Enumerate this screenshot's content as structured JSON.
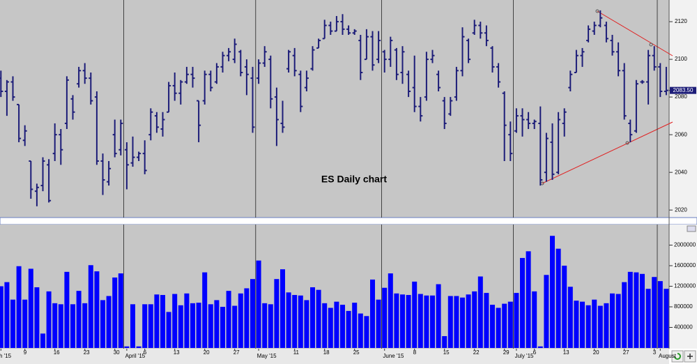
{
  "chart_data": [
    {
      "type": "ohlc",
      "title": "ES Daily chart",
      "color": "#1c1c78",
      "last_price_label": "2083.50",
      "ylim": [
        2016,
        2131.5
      ],
      "yticks": [
        2020,
        2040,
        2060,
        2080,
        2100,
        2120
      ],
      "open": [
        2090,
        2083,
        2088,
        2076,
        2057,
        2046,
        2030,
        2033,
        2044,
        2050,
        2060,
        2066,
        2079,
        2087,
        2094,
        2090,
        2080,
        2046,
        2035,
        2060,
        2052,
        2052,
        2045,
        2048,
        2050,
        2060,
        2070,
        2063,
        2072,
        2086,
        2082,
        2088,
        2092,
        2078,
        2078,
        2092,
        2088,
        2096,
        2102,
        2100,
        2104,
        2096,
        2090,
        2090,
        2098,
        2100,
        2080,
        2066,
        2095,
        2102,
        2092,
        2085,
        2095,
        2106,
        2111,
        2118,
        2115,
        2120,
        2116,
        2114,
        2110,
        2100,
        2112,
        2100,
        2104,
        2100,
        2105,
        2093,
        2092,
        2085,
        2075,
        2080,
        2100,
        2092,
        2078,
        2071,
        2080,
        2094,
        2110,
        2114,
        2118,
        2114,
        2106,
        2096,
        2082,
        2060,
        2062,
        2070,
        2068,
        2066,
        2066,
        2040,
        2056,
        2040,
        2066,
        2085,
        2093,
        2102,
        2110,
        2115,
        2118,
        2118,
        2110,
        2104,
        2094,
        2066,
        2062,
        2088,
        2088,
        2102,
        2096,
        2083
      ],
      "high": [
        2094,
        2089,
        2091,
        2076,
        2065,
        2046,
        2034,
        2048,
        2047,
        2066,
        2063,
        2091,
        2081,
        2096,
        2098,
        2093,
        2083,
        2050,
        2046,
        2068,
        2068,
        2056,
        2059,
        2051,
        2057,
        2074,
        2072,
        2072,
        2088,
        2093,
        2089,
        2096,
        2096,
        2078,
        2094,
        2094,
        2098,
        2104,
        2106,
        2111,
        2105,
        2100,
        2096,
        2100,
        2107,
        2102,
        2085,
        2078,
        2105,
        2106,
        2094,
        2094,
        2107,
        2111,
        2121,
        2120,
        2123,
        2124,
        2118,
        2116,
        2113,
        2116,
        2115,
        2115,
        2105,
        2112,
        2106,
        2107,
        2094,
        2102,
        2080,
        2104,
        2105,
        2094,
        2080,
        2080,
        2096,
        2117,
        2111,
        2121,
        2120,
        2118,
        2107,
        2098,
        2083,
        2067,
        2074,
        2074,
        2072,
        2068,
        2075,
        2061,
        2066,
        2072,
        2074,
        2094,
        2105,
        2106,
        2118,
        2120,
        2126,
        2120,
        2113,
        2109,
        2098,
        2068,
        2089,
        2089,
        2105,
        2107,
        2098,
        2096
      ],
      "low": [
        2080,
        2070,
        2078,
        2056,
        2054,
        2026,
        2022,
        2030,
        2024,
        2046,
        2044,
        2063,
        2068,
        2085,
        2087,
        2076,
        2044,
        2028,
        2033,
        2048,
        2049,
        2031,
        2043,
        2046,
        2039,
        2057,
        2061,
        2059,
        2072,
        2078,
        2076,
        2087,
        2085,
        2056,
        2076,
        2083,
        2087,
        2093,
        2099,
        2098,
        2091,
        2081,
        2061,
        2087,
        2096,
        2074,
        2054,
        2061,
        2093,
        2091,
        2072,
        2083,
        2094,
        2106,
        2111,
        2113,
        2115,
        2113,
        2113,
        2113,
        2089,
        2100,
        2094,
        2098,
        2093,
        2096,
        2089,
        2087,
        2080,
        2072,
        2067,
        2078,
        2098,
        2083,
        2063,
        2070,
        2078,
        2091,
        2098,
        2113,
        2111,
        2107,
        2093,
        2085,
        2046,
        2046,
        2061,
        2059,
        2063,
        2063,
        2033,
        2035,
        2036,
        2039,
        2059,
        2083,
        2093,
        2096,
        2109,
        2113,
        2117,
        2109,
        2102,
        2091,
        2068,
        2056,
        2061,
        2087,
        2076,
        2094,
        2080,
        2081
      ],
      "close": [
        2083,
        2088,
        2080,
        2058,
        2062,
        2031,
        2032,
        2046,
        2025,
        2060,
        2052,
        2089,
        2072,
        2094,
        2090,
        2078,
        2046,
        2036,
        2042,
        2050,
        2066,
        2044,
        2048,
        2050,
        2041,
        2072,
        2064,
        2068,
        2086,
        2082,
        2088,
        2092,
        2090,
        2065,
        2092,
        2085,
        2096,
        2102,
        2104,
        2108,
        2093,
        2092,
        2064,
        2098,
        2104,
        2079,
        2068,
        2064,
        2104,
        2094,
        2075,
        2090,
        2105,
        2110,
        2118,
        2115,
        2120,
        2116,
        2114,
        2115,
        2093,
        2112,
        2097,
        2110,
        2100,
        2110,
        2092,
        2104,
        2083,
        2075,
        2070,
        2100,
        2102,
        2085,
        2066,
        2078,
        2094,
        2112,
        2100,
        2118,
        2114,
        2110,
        2096,
        2088,
        2065,
        2050,
        2070,
        2068,
        2066,
        2067,
        2036,
        2058,
        2039,
        2068,
        2072,
        2092,
        2102,
        2104,
        2116,
        2118,
        2122,
        2111,
        2104,
        2094,
        2070,
        2060,
        2087,
        2088,
        2102,
        2096,
        2083,
        2083.5
      ]
    },
    {
      "type": "bar",
      "color": "#0000ff",
      "ylim": [
        0,
        2400000
      ],
      "yticks": [
        400000,
        800000,
        1200000,
        1600000,
        2000000
      ],
      "categories": [
        "h '15",
        null,
        null,
        null,
        "9",
        null,
        null,
        null,
        null,
        "16",
        null,
        null,
        null,
        null,
        "23",
        null,
        null,
        null,
        null,
        "30",
        null,
        "April '15",
        null,
        null,
        "6",
        null,
        null,
        null,
        null,
        "13",
        null,
        null,
        null,
        null,
        "20",
        null,
        null,
        null,
        null,
        "27",
        null,
        null,
        null,
        "May '15",
        null,
        null,
        null,
        null,
        null,
        "11",
        null,
        null,
        null,
        null,
        "18",
        null,
        null,
        null,
        null,
        "25",
        null,
        null,
        null,
        null,
        "June '15",
        null,
        null,
        null,
        null,
        "8",
        null,
        null,
        null,
        null,
        "15",
        null,
        null,
        null,
        null,
        "22",
        null,
        null,
        null,
        null,
        "29",
        null,
        "July '15",
        null,
        null,
        "6",
        null,
        null,
        null,
        null,
        "13",
        null,
        null,
        null,
        null,
        "20",
        null,
        null,
        null,
        null,
        "27",
        null,
        null,
        null,
        null,
        "3",
        "August",
        null
      ],
      "values": [
        1200000,
        1280000,
        940000,
        1590000,
        940000,
        1540000,
        1180000,
        280000,
        1100000,
        870000,
        850000,
        1480000,
        850000,
        1110000,
        870000,
        1610000,
        1490000,
        930000,
        1010000,
        1370000,
        1450000,
        30000,
        850000,
        30000,
        850000,
        850000,
        1040000,
        1030000,
        700000,
        1050000,
        830000,
        1060000,
        870000,
        880000,
        1470000,
        850000,
        930000,
        800000,
        1110000,
        820000,
        1060000,
        1160000,
        1340000,
        1700000,
        870000,
        850000,
        1340000,
        1530000,
        1080000,
        1030000,
        1020000,
        930000,
        1180000,
        1130000,
        870000,
        780000,
        900000,
        840000,
        720000,
        880000,
        670000,
        620000,
        1330000,
        940000,
        1170000,
        1450000,
        1060000,
        1040000,
        1030000,
        1290000,
        1050000,
        1020000,
        1020000,
        1240000,
        230000,
        1010000,
        1010000,
        980000,
        1040000,
        1100000,
        1390000,
        1070000,
        840000,
        780000,
        860000,
        900000,
        1070000,
        1750000,
        1880000,
        1100000,
        30000,
        1420000,
        2180000,
        1930000,
        1600000,
        1190000,
        920000,
        900000,
        830000,
        940000,
        820000,
        870000,
        1060000,
        1050000,
        1280000,
        1480000,
        1470000,
        1440000,
        1150000,
        1380000,
        1300000,
        1150000
      ]
    }
  ]
}
